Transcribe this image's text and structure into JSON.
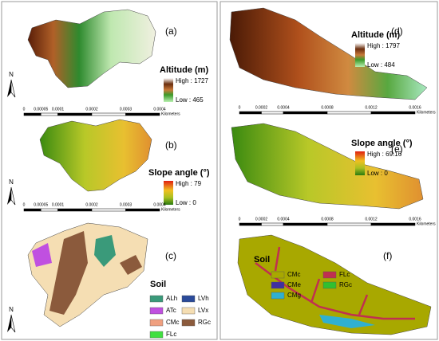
{
  "panels": [
    {
      "label": "(a)",
      "legend_title": "Altitude (m)",
      "high": "High : 1727",
      "low": "Low : 465",
      "north": "N",
      "scale_ticks": [
        "0",
        "0.00005",
        "0.0001",
        "0.0002",
        "0.0003",
        "0.0004"
      ],
      "scale_unit": "Kilometers"
    },
    {
      "label": "(b)",
      "legend_title": "Slope angle (°)",
      "high": "High : 79",
      "low": "Low : 0",
      "north": "N",
      "scale_ticks": [
        "0",
        "0.00005",
        "0.0001",
        "0.0002",
        "0.0003",
        "0.0004"
      ],
      "scale_unit": "Kilometers"
    },
    {
      "label": "(c)",
      "legend_title": "Soil",
      "north": "N",
      "classes": [
        "ALh",
        "ATc",
        "CMc",
        "FLc",
        "LVh",
        "LVx",
        "RGc"
      ]
    },
    {
      "label": "(d)",
      "legend_title": "Altitude (m)",
      "high": "High : 1797",
      "low": "Low : 484",
      "scale_ticks": [
        "0",
        "0.0002",
        "0.0004",
        "0.0008",
        "0.0012",
        "0.0016"
      ],
      "scale_unit": "Kilometers"
    },
    {
      "label": "(e)",
      "legend_title": "Slope angle (°)",
      "high": "High : 69.16",
      "low": "Low : 0",
      "scale_ticks": [
        "0",
        "0.0002",
        "0.0004",
        "0.0008",
        "0.0012",
        "0.0016"
      ],
      "scale_unit": "Kilometers"
    },
    {
      "label": "(f)",
      "legend_title": "Soil",
      "classes": [
        "CMc",
        "CMe",
        "CMg",
        "FLc",
        "RGc"
      ]
    }
  ]
}
